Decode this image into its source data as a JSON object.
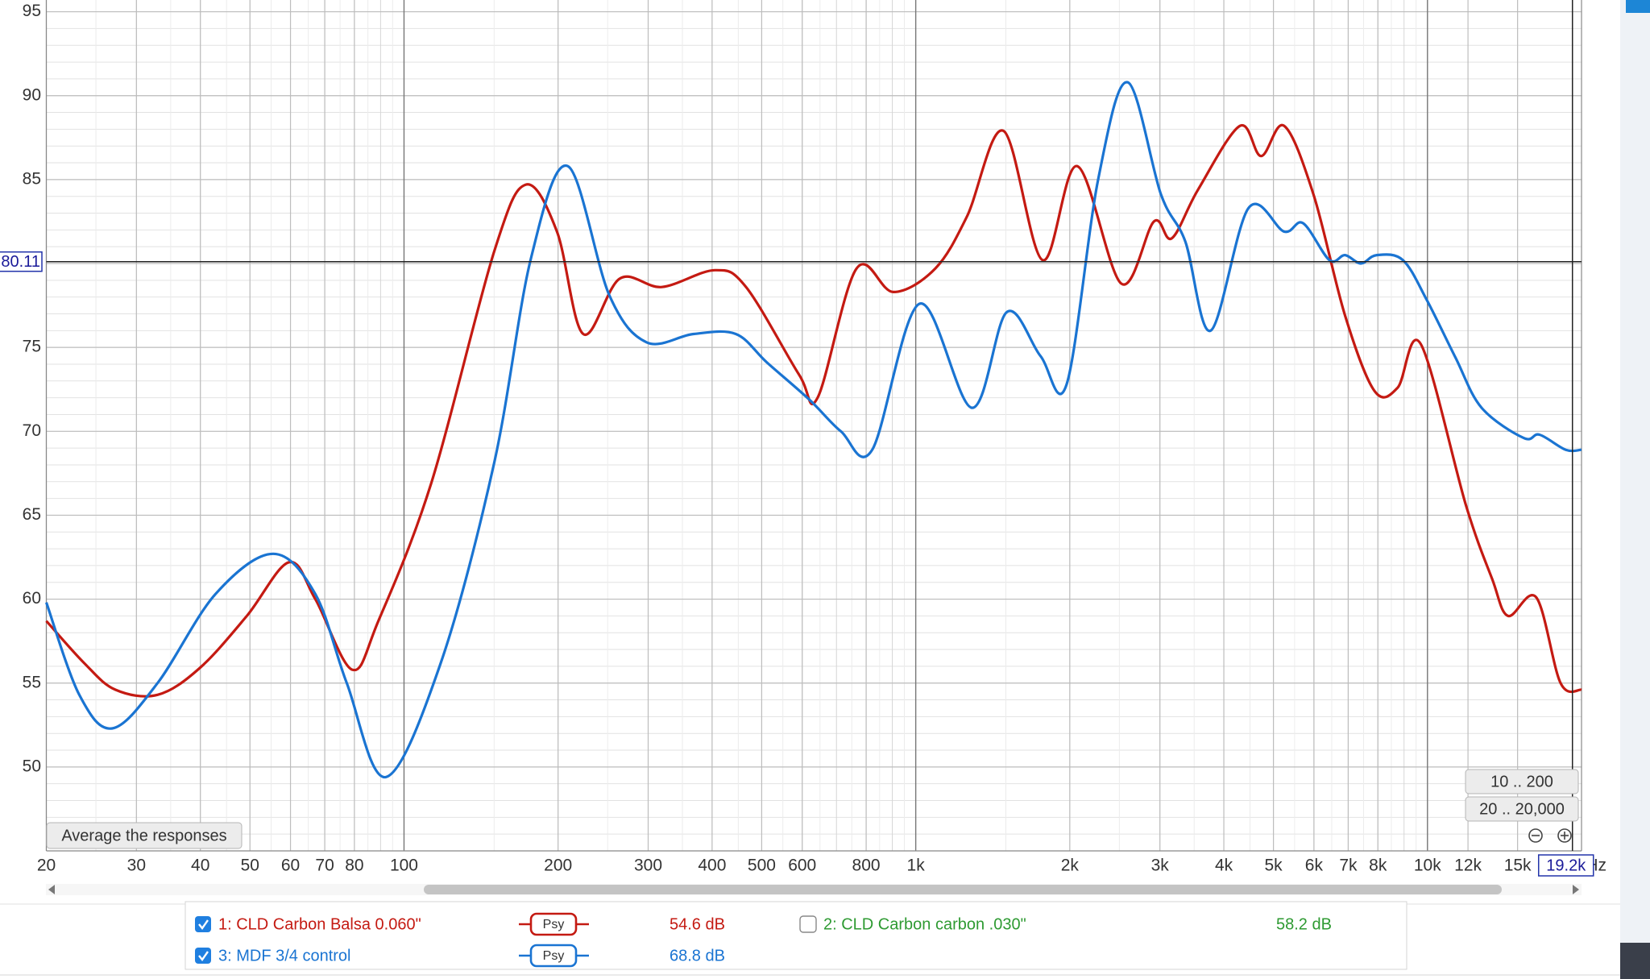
{
  "chart_data": {
    "type": "line",
    "x_scale": "log",
    "x_unit": "Hz",
    "xlim": [
      20,
      20000
    ],
    "ylim": [
      45,
      95.7
    ],
    "xticks": [
      20,
      30,
      40,
      50,
      60,
      70,
      80,
      100,
      200,
      300,
      400,
      500,
      600,
      800,
      {
        "value": 1000,
        "label": "1k"
      },
      {
        "value": 2000,
        "label": "2k"
      },
      {
        "value": 3000,
        "label": "3k"
      },
      {
        "value": 4000,
        "label": "4k"
      },
      {
        "value": 5000,
        "label": "5k"
      },
      {
        "value": 6000,
        "label": "6k"
      },
      {
        "value": 7000,
        "label": "7k"
      },
      {
        "value": 8000,
        "label": "8k"
      },
      {
        "value": 10000,
        "label": "10k"
      },
      {
        "value": 12000,
        "label": "12k"
      },
      {
        "value": 15000,
        "label": "15k"
      }
    ],
    "yticks": [
      50,
      55,
      60,
      65,
      70,
      75,
      80,
      85,
      90,
      95
    ],
    "grid": true,
    "cursor": {
      "x": {
        "value": 19200,
        "label": "19.2k"
      },
      "y": 80.11
    },
    "series": [
      {
        "name": "1: CLD Carbon Balsa 0.060\"",
        "color": "#c41a12",
        "checked": true,
        "smoothing": "Psy",
        "level": "54.6 dB",
        "x": [
          20,
          23.7,
          27.3,
          33,
          39.9,
          49.3,
          59.6,
          67.1,
          79.2,
          89.1,
          113,
          150,
          173,
          199,
          224,
          264,
          319,
          405,
          466,
          591,
          643,
          766,
          904,
          1092,
          1259,
          1485,
          1769,
          2068,
          2522,
          2920,
          3164,
          3562,
          4302,
          4730,
          5248,
          5990,
          6902,
          7880,
          8744,
          9702,
          11890,
          13380,
          14370,
          16320,
          18200,
          20000
        ],
        "values": [
          58.7,
          56.2,
          54.6,
          54.3,
          55.9,
          59.0,
          62.2,
          60.0,
          55.8,
          58.7,
          66.9,
          80.7,
          84.7,
          81.9,
          75.8,
          79.1,
          78.6,
          79.6,
          78.6,
          73.4,
          72.0,
          79.7,
          78.3,
          79.7,
          82.8,
          87.9,
          80.2,
          85.8,
          78.8,
          82.5,
          81.5,
          84.4,
          88.2,
          86.4,
          88.2,
          84.1,
          76.9,
          72.4,
          72.6,
          75.2,
          65.6,
          61.2,
          59.0,
          60.1,
          55.0,
          54.6
        ]
      },
      {
        "name": "2: CLD Carbon carbon .030\"",
        "color": "#2e9a32",
        "checked": false,
        "level": "58.2 dB",
        "x": [],
        "values": []
      },
      {
        "name": "3: MDF 3/4 control",
        "color": "#1a74d2",
        "checked": true,
        "smoothing": "Psy",
        "level": "68.8 dB",
        "x": [
          20,
          23.2,
          26.9,
          33,
          42.8,
          55.5,
          67.1,
          77.3,
          92.1,
          118,
          150,
          177,
          209,
          252,
          298,
          368,
          445,
          512,
          619,
          714,
          822,
          1017,
          1288,
          1506,
          1752,
          1972,
          2272,
          2594,
          3016,
          3364,
          3770,
          4468,
          5248,
          5714,
          6432,
          6902,
          7412,
          7958,
          8954,
          9980,
          11340,
          12760,
          15420,
          16560,
          18630,
          20000
        ],
        "values": [
          59.8,
          54.3,
          52.3,
          55.0,
          60.3,
          62.7,
          60.3,
          55.0,
          49.4,
          56.2,
          68.1,
          80.3,
          85.8,
          78.1,
          75.3,
          75.8,
          75.8,
          74.1,
          71.9,
          70.0,
          68.9,
          77.6,
          71.4,
          77.1,
          74.5,
          72.8,
          85.0,
          90.8,
          84.1,
          81.3,
          76.0,
          83.3,
          81.9,
          82.4,
          80.2,
          80.5,
          80.0,
          80.5,
          80.2,
          77.8,
          74.4,
          71.4,
          69.6,
          69.8,
          68.9,
          68.9
        ]
      }
    ]
  },
  "controls": {
    "average_button": "Average the responses",
    "range_buttons": [
      "10 .. 200",
      "20 .. 20,000"
    ]
  }
}
